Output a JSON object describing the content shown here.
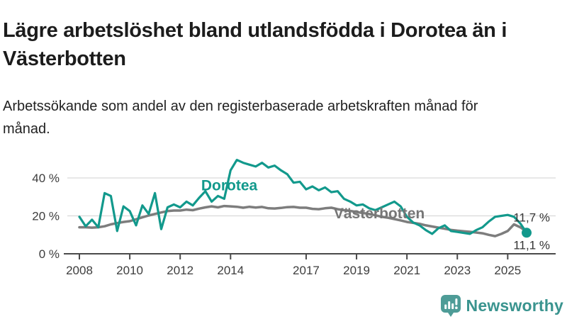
{
  "header": {
    "title": "Lägre arbetslöshet bland utlandsfödda i Dorotea än i Västerbotten",
    "subtitle": "Arbetssökande som andel av den registerbaserade arbetskraften månad för månad."
  },
  "chart_data": {
    "type": "line",
    "title": "Lägre arbetslöshet bland utlandsfödda i Dorotea än i Västerbotten",
    "subtitle": "Arbetssökande som andel av den registerbaserade arbetskraften månad för månad.",
    "unit": "%",
    "xlim": [
      2007.9,
      2026.0
    ],
    "ylim": [
      0,
      52
    ],
    "grid": "horizontal",
    "legend": "inline-labels-on-lines",
    "x_ticks": [
      {
        "value": 2008,
        "label": "2008"
      },
      {
        "value": 2010,
        "label": "2010"
      },
      {
        "value": 2012,
        "label": "2012"
      },
      {
        "value": 2014,
        "label": "2014"
      },
      {
        "value": 2017,
        "label": "2017"
      },
      {
        "value": 2019,
        "label": "2019"
      },
      {
        "value": 2021,
        "label": "2021"
      },
      {
        "value": 2023,
        "label": "2023"
      },
      {
        "value": 2025,
        "label": "2025"
      }
    ],
    "y_ticks": [
      {
        "value": 0,
        "label": "0 %"
      },
      {
        "value": 20,
        "label": "20 %"
      },
      {
        "value": 40,
        "label": "40 %"
      }
    ],
    "x": [
      2008.0,
      2008.25,
      2008.5,
      2008.75,
      2009.0,
      2009.25,
      2009.5,
      2009.75,
      2010.0,
      2010.25,
      2010.5,
      2010.75,
      2011.0,
      2011.25,
      2011.5,
      2011.75,
      2012.0,
      2012.25,
      2012.5,
      2012.75,
      2013.0,
      2013.25,
      2013.5,
      2013.75,
      2014.0,
      2014.25,
      2014.5,
      2014.75,
      2015.0,
      2015.25,
      2015.5,
      2015.75,
      2016.0,
      2016.25,
      2016.5,
      2016.75,
      2017.0,
      2017.25,
      2017.5,
      2017.75,
      2018.0,
      2018.25,
      2018.5,
      2018.75,
      2019.0,
      2019.25,
      2019.5,
      2019.75,
      2020.0,
      2020.25,
      2020.5,
      2020.75,
      2021.0,
      2021.25,
      2021.5,
      2021.75,
      2022.0,
      2022.25,
      2022.5,
      2022.75,
      2023.0,
      2023.25,
      2023.5,
      2023.75,
      2024.0,
      2024.25,
      2024.5,
      2024.75,
      2025.0,
      2025.25,
      2025.5,
      2025.75
    ],
    "series": [
      {
        "name": "Västerbotten",
        "color": "#7d7d7d",
        "line_width": 3.5,
        "end_label": "11,7 %",
        "end_label_position": "above",
        "end_dot": false,
        "values": [
          14.0,
          14.0,
          13.8,
          14.0,
          14.5,
          15.5,
          16.2,
          16.8,
          17.2,
          18.2,
          19.2,
          20.2,
          21.0,
          21.8,
          22.5,
          22.8,
          22.8,
          23.3,
          23.0,
          23.8,
          24.5,
          25.0,
          24.5,
          25.2,
          25.0,
          24.8,
          24.3,
          24.8,
          24.4,
          24.7,
          24.0,
          23.9,
          24.2,
          24.6,
          24.7,
          24.3,
          24.3,
          23.7,
          23.5,
          24.0,
          24.3,
          23.5,
          23.0,
          22.6,
          22.0,
          21.5,
          21.0,
          20.3,
          19.5,
          19.0,
          18.3,
          17.6,
          16.8,
          16.3,
          15.8,
          15.0,
          14.4,
          13.8,
          13.2,
          12.6,
          12.2,
          11.9,
          11.6,
          11.2,
          10.8,
          10.0,
          9.3,
          10.5,
          12.0,
          15.5,
          14.0,
          11.7
        ]
      },
      {
        "name": "Dorotea",
        "color": "#12998c",
        "line_width": 3.2,
        "end_label": "11,1 %",
        "end_label_position": "below",
        "end_dot": true,
        "values": [
          19.5,
          14.5,
          18.0,
          14.0,
          32.0,
          30.5,
          12.0,
          25.0,
          22.5,
          15.0,
          25.5,
          21.0,
          32.0,
          13.0,
          24.5,
          26.0,
          24.5,
          27.5,
          25.5,
          29.5,
          33.0,
          27.5,
          30.5,
          29.0,
          44.0,
          49.5,
          48.0,
          47.0,
          46.0,
          48.0,
          45.5,
          46.5,
          44.0,
          42.0,
          37.5,
          38.0,
          34.0,
          35.5,
          33.5,
          35.0,
          32.5,
          33.0,
          29.0,
          27.5,
          25.5,
          26.0,
          24.0,
          23.0,
          24.5,
          26.0,
          27.5,
          25.0,
          19.5,
          16.5,
          15.0,
          12.5,
          10.5,
          13.5,
          15.0,
          12.0,
          11.5,
          11.0,
          10.5,
          12.5,
          14.0,
          17.0,
          19.5,
          20.0,
          20.5,
          19.5,
          16.0,
          11.1
        ]
      }
    ],
    "annotations": [
      {
        "text": "Dorotea",
        "x": 2013.95,
        "y": 36.0,
        "color": "#12998c"
      },
      {
        "text": "Västerbotten",
        "x": 2019.9,
        "y": 21.3,
        "color": "#767676"
      }
    ]
  },
  "footer": {
    "brand": "Newsworthy",
    "brand_color": "#3a948f",
    "logo_icon": "bar-chart-speech-bubble-icon"
  }
}
